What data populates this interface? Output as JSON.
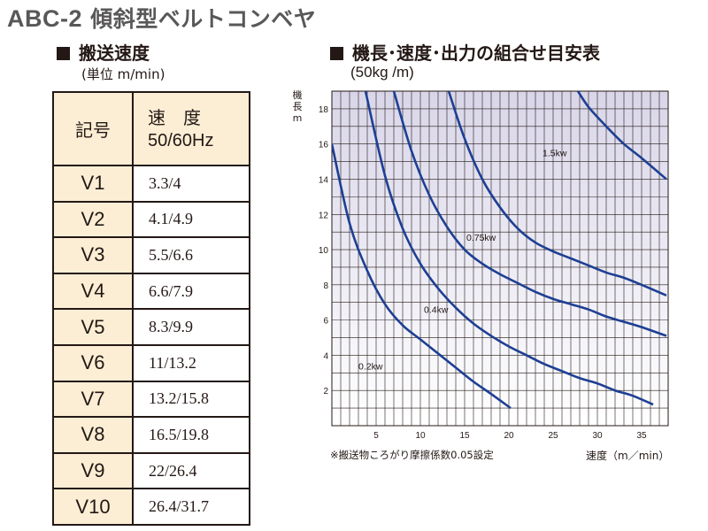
{
  "page": {
    "title_model": "ABC-2",
    "title_name": "傾斜型ベルトコンベヤ"
  },
  "speed_section": {
    "heading": "搬送速度",
    "unit": "(単位 m/min)",
    "header_symbol": "記号",
    "header_speed_line1": "速　度",
    "header_speed_line2": "50/60Hz",
    "rows": [
      {
        "symbol": "V1",
        "speed": "3.3/4"
      },
      {
        "symbol": "V2",
        "speed": "4.1/4.9"
      },
      {
        "symbol": "V3",
        "speed": "5.5/6.6"
      },
      {
        "symbol": "V4",
        "speed": "6.6/7.9"
      },
      {
        "symbol": "V5",
        "speed": "8.3/9.9"
      },
      {
        "symbol": "V6",
        "speed": "11/13.2"
      },
      {
        "symbol": "V7",
        "speed": "13.2/15.8"
      },
      {
        "symbol": "V8",
        "speed": "16.5/19.8"
      },
      {
        "symbol": "V9",
        "speed": "22/26.4"
      },
      {
        "symbol": "V10",
        "speed": "26.4/31.7"
      }
    ]
  },
  "chart_section": {
    "heading": "機長･速度･出力の組合せ目安表",
    "subheading": "(50kg /m)",
    "note": "※搬送物ころがり摩擦係数0.05設定",
    "xlabel": "速度（m／min）"
  },
  "chart_data": {
    "type": "line",
    "title": "機長･速度･出力の組合せ目安表",
    "subtitle": "(50kg /m)",
    "xlabel": "速度（m／min）",
    "ylabel": "機長m",
    "xlim": [
      0,
      38
    ],
    "ylim": [
      0,
      19
    ],
    "xticks": [
      5,
      10,
      15,
      20,
      25,
      30,
      35
    ],
    "yticks": [
      2,
      4,
      6,
      8,
      10,
      12,
      14,
      16,
      18
    ],
    "grid": true,
    "colors": {
      "curve": "#1d3f94",
      "plot_bg_top": "#d9d6e9",
      "plot_bg_bottom": "#ffffff",
      "grid": "#231815"
    },
    "series": [
      {
        "name": "0.2kw",
        "x": [
          0,
          2,
          4,
          6,
          8,
          10,
          12,
          14,
          16,
          18,
          20.2
        ],
        "y": [
          16.0,
          11.5,
          8.8,
          6.9,
          5.7,
          4.9,
          4.1,
          3.3,
          2.5,
          1.8,
          1.0
        ]
      },
      {
        "name": "0.4kw",
        "x": [
          3.8,
          6,
          8,
          10,
          12,
          14,
          16,
          18,
          20,
          22,
          24,
          26,
          28,
          30,
          32,
          34,
          36.3
        ],
        "y": [
          19,
          14.2,
          11.2,
          9.2,
          7.8,
          6.7,
          5.8,
          5.1,
          4.5,
          4.0,
          3.5,
          3.1,
          2.7,
          2.4,
          2.0,
          1.7,
          1.2
        ]
      },
      {
        "name": "0.75kw",
        "x": [
          7,
          9,
          11,
          13,
          15,
          17,
          19,
          21,
          23,
          25,
          27,
          29,
          31,
          33,
          35,
          37.8
        ],
        "y": [
          19,
          15.6,
          13.1,
          11.3,
          10.0,
          9.2,
          8.6,
          8.1,
          7.6,
          7.2,
          6.9,
          6.6,
          6.2,
          5.9,
          5.6,
          5.1
        ]
      },
      {
        "name": "1.5kw",
        "x": [
          13.2,
          15,
          17,
          19,
          21,
          23,
          25,
          27,
          29,
          31,
          33,
          35,
          37.8
        ],
        "y": [
          19,
          16.3,
          14.0,
          12.4,
          11.2,
          10.4,
          9.9,
          9.5,
          9.1,
          8.7,
          8.4,
          8.0,
          7.4
        ]
      },
      {
        "name": "",
        "x": [
          27.8,
          29,
          31,
          33,
          35,
          37.8
        ],
        "y": [
          19,
          18.1,
          17.0,
          16.0,
          15.2,
          14.0
        ]
      }
    ]
  }
}
